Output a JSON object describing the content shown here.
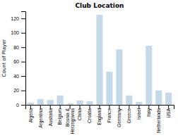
{
  "chart_data": {
    "type": "bar",
    "title": "Club Location",
    "ylabel": "Count of Player",
    "categories": [
      "Algeria",
      "Argentina",
      "Australia",
      "Belgium",
      "Bosnia &\nHerzegovina",
      "China",
      "Croatia",
      "England",
      "France",
      "Germany",
      "Greece",
      "Israel",
      "Italy",
      "Netherlands",
      "USA"
    ],
    "values": [
      3,
      8,
      7,
      13,
      2,
      6,
      5,
      125,
      46,
      77,
      13,
      4,
      82,
      20,
      17
    ],
    "color": "#c5d9e8",
    "ylim": [
      0,
      130
    ],
    "yticks": [
      0,
      20,
      40,
      60,
      80,
      100,
      120
    ],
    "grid": false
  }
}
